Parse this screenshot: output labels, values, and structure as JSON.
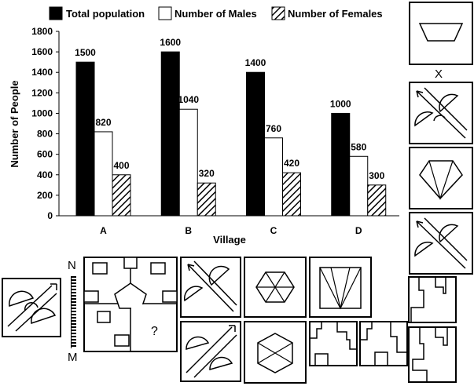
{
  "chart_data": {
    "type": "bar",
    "categories": [
      "A",
      "B",
      "C",
      "D"
    ],
    "series": [
      {
        "name": "Total population",
        "values": [
          1500,
          1600,
          1400,
          1000
        ],
        "pattern": "solid",
        "color": "#000000"
      },
      {
        "name": "Number of Males",
        "values": [
          820,
          1040,
          760,
          580
        ],
        "pattern": "white",
        "color": "#ffffff"
      },
      {
        "name": "Number of Females",
        "values": [
          400,
          320,
          420,
          300
        ],
        "pattern": "hatch",
        "color": "#000000"
      }
    ],
    "xlabel": "Village",
    "ylabel": "Number of People",
    "ylim": [
      0,
      1800
    ],
    "yticks": [
      0,
      200,
      400,
      600,
      800,
      1000,
      1200,
      1400,
      1600,
      1800
    ],
    "legend": "top",
    "grid": false
  },
  "puzzle": {
    "x_label": "X",
    "question_mark": "?",
    "mirror_top_label": "N",
    "mirror_bottom_label": "M"
  }
}
